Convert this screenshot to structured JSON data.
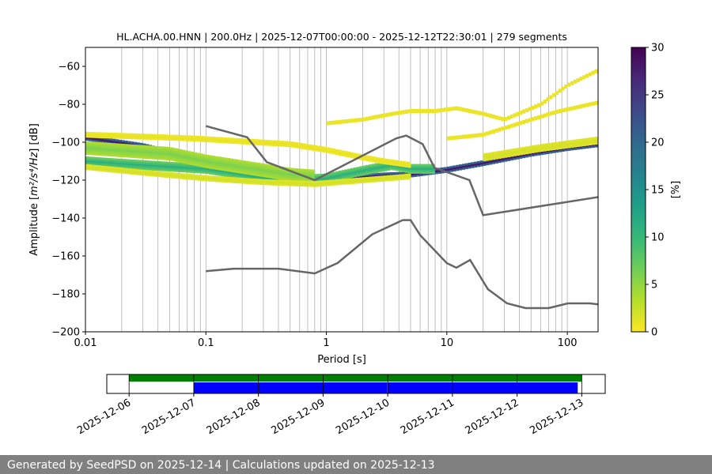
{
  "chart_data": [
    {
      "type": "heatmap",
      "title": "HL.ACHA.00.HNN | 200.0Hz | 2025-12-07T00:00:00 - 2025-12-12T22:30:01 | 279 segments",
      "xlabel": "Period [s]",
      "ylabel_prefix": "Amplitude [",
      "ylabel_math": "m²/s⁴/Hz",
      "ylabel_suffix": "] [dB]",
      "x_scale": "log",
      "xlim": [
        0.01,
        180
      ],
      "ylim": [
        -200,
        -50
      ],
      "x_ticks": [
        {
          "value": 0.01,
          "label": "0.01"
        },
        {
          "value": 0.1,
          "label": "0.1"
        },
        {
          "value": 1,
          "label": "1"
        },
        {
          "value": 10,
          "label": "10"
        },
        {
          "value": 100,
          "label": "100"
        }
      ],
      "y_ticks": [
        {
          "value": -200,
          "label": "−200"
        },
        {
          "value": -180,
          "label": "−180"
        },
        {
          "value": -160,
          "label": "−160"
        },
        {
          "value": -140,
          "label": "−140"
        },
        {
          "value": -120,
          "label": "−120"
        },
        {
          "value": -100,
          "label": "−100"
        },
        {
          "value": -80,
          "label": "−80"
        },
        {
          "value": -60,
          "label": "−60"
        }
      ],
      "vertical_gridlines": [
        0.01,
        0.02,
        0.03,
        0.04,
        0.05,
        0.06,
        0.07,
        0.08,
        0.09,
        0.1,
        0.2,
        0.3,
        0.4,
        0.5,
        0.6,
        0.7,
        0.8,
        0.9,
        1,
        2,
        3,
        4,
        5,
        6,
        7,
        8,
        9,
        10,
        20,
        30,
        40,
        50,
        60,
        70,
        80,
        90,
        100
      ],
      "grid": true,
      "colorbar": {
        "label": "[%]",
        "range": [
          0,
          30
        ],
        "ticks": [
          {
            "value": 0,
            "label": "0"
          },
          {
            "value": 5,
            "label": "5"
          },
          {
            "value": 10,
            "label": "10"
          },
          {
            "value": 15,
            "label": "15"
          },
          {
            "value": 20,
            "label": "20"
          },
          {
            "value": 25,
            "label": "25"
          },
          {
            "value": 30,
            "label": "30"
          }
        ],
        "colors": [
          "#fde725",
          "#b5de2b",
          "#6ece58",
          "#35b779",
          "#1f9e89",
          "#26828e",
          "#31688e",
          "#3e4989",
          "#482878",
          "#440154"
        ]
      },
      "reference_color": "#666666",
      "new_high_noise_model": [
        [
          0.1,
          -91.5
        ],
        [
          0.22,
          -97.4
        ],
        [
          0.32,
          -110.5
        ],
        [
          0.8,
          -120
        ],
        [
          3.8,
          -98
        ],
        [
          4.6,
          -96.5
        ],
        [
          6.3,
          -101
        ],
        [
          7.9,
          -113.5
        ],
        [
          15.4,
          -120
        ],
        [
          20,
          -138.5
        ],
        [
          354.8,
          -126
        ]
      ],
      "new_low_noise_model": [
        [
          0.1,
          -168
        ],
        [
          0.17,
          -166.7
        ],
        [
          0.4,
          -166.7
        ],
        [
          0.8,
          -169.2
        ],
        [
          1.24,
          -163.7
        ],
        [
          2.4,
          -148.6
        ],
        [
          4.3,
          -141.1
        ],
        [
          5,
          -141.1
        ],
        [
          6,
          -149
        ],
        [
          10,
          -163.8
        ],
        [
          12,
          -166.2
        ],
        [
          15.6,
          -162.1
        ],
        [
          21.9,
          -177.5
        ],
        [
          31.6,
          -185
        ],
        [
          45,
          -187.5
        ],
        [
          70,
          -187.5
        ],
        [
          101,
          -185
        ],
        [
          154,
          -185
        ],
        [
          328,
          -187.5
        ]
      ],
      "density_bands": [
        {
          "points": [
            [
              0.01,
              -97.5
            ],
            [
              0.03,
              -102
            ],
            [
              0.1,
              -110
            ],
            [
              0.2,
              -116
            ],
            [
              0.4,
              -120.5
            ],
            [
              0.8,
              -121.5
            ],
            [
              1.5,
              -119
            ],
            [
              3,
              -117.5
            ],
            [
              5,
              -117
            ],
            [
              10,
              -114.5
            ],
            [
              20,
              -111
            ],
            [
              50,
              -106
            ],
            [
              100,
              -103
            ],
            [
              180,
              -101
            ]
          ],
          "width": 3,
          "value": 28
        },
        {
          "points": [
            [
              0.01,
              -110
            ],
            [
              0.03,
              -112
            ],
            [
              0.1,
              -114
            ],
            [
              0.25,
              -118
            ],
            [
              0.5,
              -120
            ],
            [
              1,
              -119
            ],
            [
              2,
              -115
            ],
            [
              3.5,
              -112
            ],
            [
              5,
              -114
            ],
            [
              8,
              -114
            ]
          ],
          "width": 5,
          "value": 11
        },
        {
          "points": [
            [
              0.01,
              -103
            ],
            [
              0.05,
              -106
            ],
            [
              0.1,
              -110
            ],
            [
              0.2,
              -113
            ],
            [
              0.5,
              -117
            ],
            [
              0.8,
              -118
            ]
          ],
          "width": 7,
          "value": 6
        },
        {
          "points": [
            [
              0.01,
              -96
            ],
            [
              0.03,
              -97
            ],
            [
              0.08,
              -98
            ],
            [
              0.2,
              -99.5
            ],
            [
              0.5,
              -101
            ],
            [
              1,
              -104
            ],
            [
              2,
              -108
            ],
            [
              3,
              -110
            ],
            [
              5,
              -112
            ]
          ],
          "width": 3,
          "value": 1
        },
        {
          "points": [
            [
              1,
              -90
            ],
            [
              2,
              -88
            ],
            [
              3.5,
              -85
            ],
            [
              5,
              -83.5
            ],
            [
              8,
              -83.5
            ],
            [
              12,
              -82
            ],
            [
              20,
              -85
            ],
            [
              30,
              -88
            ],
            [
              60,
              -80
            ],
            [
              100,
              -70
            ],
            [
              180,
              -62
            ]
          ],
          "width": 2,
          "value": 1
        },
        {
          "points": [
            [
              10,
              -98
            ],
            [
              20,
              -96
            ],
            [
              40,
              -90
            ],
            [
              80,
              -84
            ],
            [
              180,
              -79
            ]
          ],
          "width": 2,
          "value": 1
        },
        {
          "points": [
            [
              0.01,
              -113
            ],
            [
              0.03,
              -116
            ],
            [
              0.1,
              -119
            ],
            [
              0.3,
              -121
            ],
            [
              0.8,
              -122
            ],
            [
              2,
              -120
            ],
            [
              5,
              -118
            ]
          ],
          "width": 3,
          "value": 2
        },
        {
          "points": [
            [
              20,
              -108
            ],
            [
              60,
              -103
            ],
            [
              180,
              -99
            ]
          ],
          "width": 4,
          "value": 2
        }
      ]
    },
    {
      "type": "timeline",
      "x_ticks": [
        "2025-12-06",
        "2025-12-07",
        "2025-12-08",
        "2025-12-09",
        "2025-12-10",
        "2025-12-11",
        "2025-12-12",
        "2025-12-13"
      ],
      "xlim": [
        "2025-12-05T15:44",
        "2025-12-13T08:42"
      ],
      "green_bar": {
        "start": "2025-12-06",
        "end": "2025-12-13",
        "color": "#008000"
      },
      "blue_bars": [
        {
          "start": "2025-12-07T00:00",
          "end": "2025-12-07T23:55"
        },
        {
          "start": "2025-12-08T00:02",
          "end": "2025-12-09T23:50"
        },
        {
          "start": "2025-12-10T00:05",
          "end": "2025-12-12T22:30"
        }
      ],
      "blue_color": "#0000ff"
    }
  ],
  "footer": "Generated by SeedPSD on 2025-12-14 | Calculations updated on 2025-12-13"
}
